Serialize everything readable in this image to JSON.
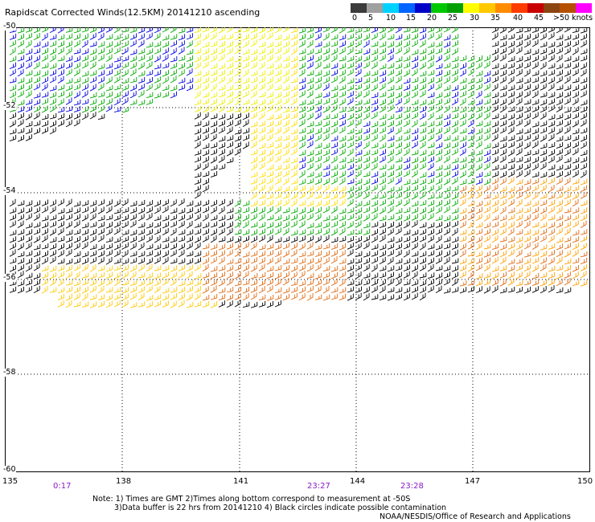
{
  "title": "Rapidscat Corrected Winds(12.5KM) 20141210 ascending",
  "legend": {
    "colors": [
      "#3c3c3c",
      "#a0a0a0",
      "#00d2ff",
      "#0064ff",
      "#0000c8",
      "#00c800",
      "#00a000",
      "#ffff00",
      "#ffc800",
      "#ff8c00",
      "#ff3c00",
      "#c80000",
      "#8b4513",
      "#b45000",
      "#ff00ff",
      "#8b008b",
      "#5a0096"
    ],
    "labels": [
      "0",
      "5",
      "10",
      "15",
      "20",
      "25",
      "30",
      "35",
      "40",
      "45",
      ">50 knots"
    ]
  },
  "lat_labels": [
    "-50",
    "-52",
    "-54",
    "-56",
    "-58",
    "-60"
  ],
  "lon_labels": [
    "135",
    "138",
    "141",
    "144",
    "147",
    "150"
  ],
  "time_labels": [
    "0:17",
    "23:27",
    "23:28"
  ],
  "notes": {
    "line1": "Note: 1) Times are GMT 2)Times along bottom correspond to measurement at -50S",
    "line2": "3)Data buffer is 22 hrs from 20141210 4) Black circles indicate possible contamination"
  },
  "credit": "NOAA/NESDIS/Office of Research and Applications"
}
